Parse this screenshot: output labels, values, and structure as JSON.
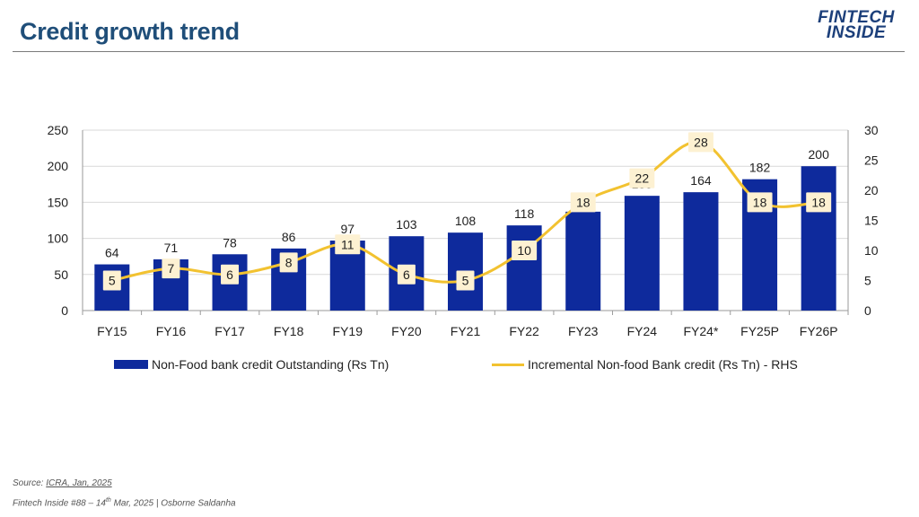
{
  "page": {
    "title": "Credit growth trend",
    "logo_line1": "FINTECH",
    "logo_line2": "INSIDE",
    "source_label": "Source: ",
    "source_link": "ICRA, Jan, 2025",
    "footer_a": "Fintech Inside #88 – 14",
    "footer_sup": "th",
    "footer_b": " Mar, 2025 | Osborne Saldanha"
  },
  "colors": {
    "bar": "#0e2a9c",
    "line": "#f2c230",
    "label_bg": "#fdf1d2",
    "title": "#1f4e79"
  },
  "chart_data": {
    "type": "bar",
    "categories": [
      "FY15",
      "FY16",
      "FY17",
      "FY18",
      "FY19",
      "FY20",
      "FY21",
      "FY22",
      "FY23",
      "FY24",
      "FY24*",
      "FY25P",
      "FY26P"
    ],
    "series": [
      {
        "name": "Non-Food bank credit Outstanding (Rs Tn)",
        "type": "bar",
        "axis": "left",
        "values": [
          64,
          71,
          78,
          86,
          97,
          103,
          108,
          118,
          137,
          159,
          164,
          182,
          200
        ]
      },
      {
        "name": "Incremental Non-food Bank credit (Rs Tn) - RHS",
        "type": "line",
        "axis": "right",
        "values": [
          5,
          7,
          6,
          8,
          11,
          6,
          5,
          10,
          18,
          22,
          28,
          18,
          18
        ]
      }
    ],
    "ylim": [
      0,
      250
    ],
    "yticks": [
      0,
      50,
      100,
      150,
      200,
      250
    ],
    "y2lim": [
      0,
      30
    ],
    "y2ticks": [
      0,
      5,
      10,
      15,
      20,
      25,
      30
    ],
    "grid": true,
    "legend": "bottom"
  }
}
